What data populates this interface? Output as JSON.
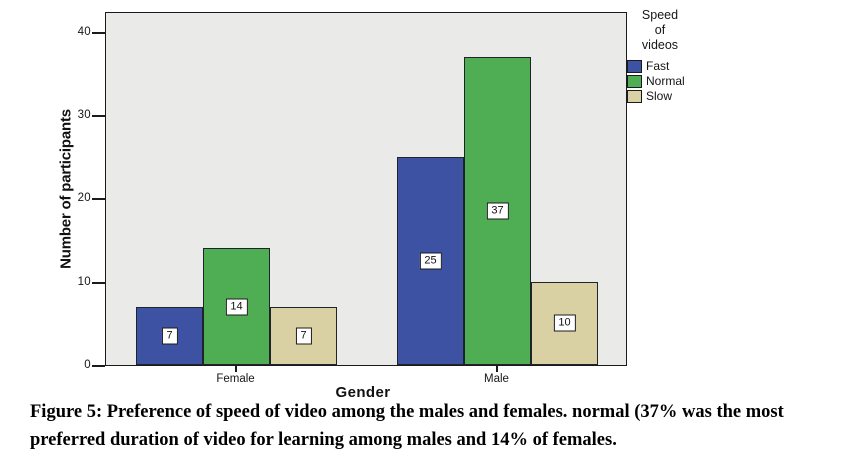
{
  "chart_data": {
    "type": "bar",
    "categories": [
      "Female",
      "Male"
    ],
    "series": [
      {
        "name": "Fast",
        "color": "#3D52A2",
        "values": [
          7,
          25
        ]
      },
      {
        "name": "Normal",
        "color": "#4FAE54",
        "values": [
          14,
          37
        ]
      },
      {
        "name": "Slow",
        "color": "#D9D1A3",
        "values": [
          7,
          10
        ]
      }
    ],
    "xlabel": "Gender",
    "ylabel": "Number of participants",
    "yticks": [
      0,
      10,
      20,
      30,
      40
    ],
    "ylim": [
      0,
      42.5
    ],
    "grid": false,
    "bar_value_labels": true,
    "legend_title": "Speed\nof\nvideos",
    "legend_position": "right-outside-top",
    "plot_bg": "#EAEAE8"
  },
  "caption": "Figure 5: Preference of speed of video among the males and females. normal (37% was the most preferred duration of video for learning among males and 14% of females."
}
